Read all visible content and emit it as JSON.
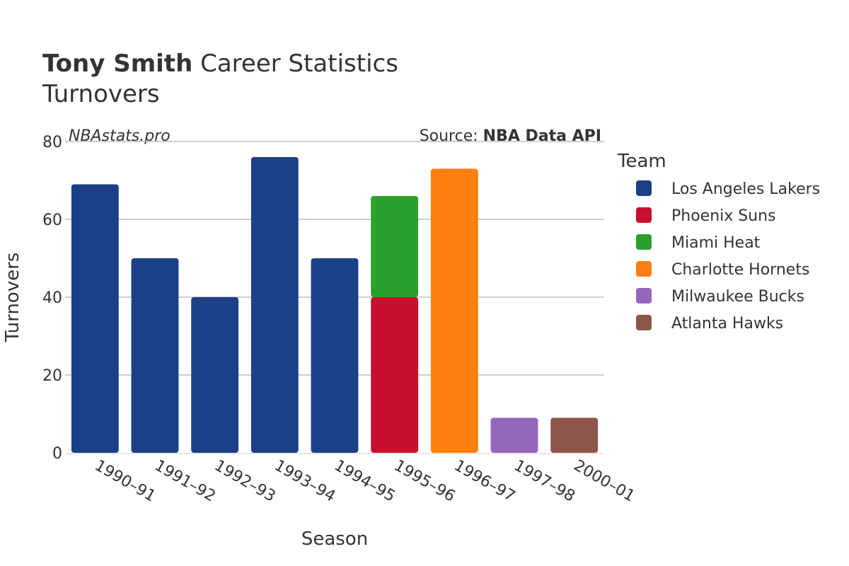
{
  "chart_data": {
    "type": "bar",
    "stacked": true,
    "title_bold": "Tony Smith",
    "title_rest": " Career Statistics",
    "subtitle": "Turnovers",
    "watermark": "NBAstats.pro",
    "source_prefix": "Source: ",
    "source_name": "NBA Data API",
    "xlabel": "Season",
    "ylabel": "Turnovers",
    "ylim": [
      0,
      80
    ],
    "yticks": [
      0,
      20,
      40,
      60,
      80
    ],
    "grid": true,
    "legend_title": "Team",
    "legend_position": "right",
    "categories": [
      "1990–91",
      "1991–92",
      "1992–93",
      "1993–94",
      "1994–95",
      "1995–96",
      "1996–97",
      "1997–98",
      "2000–01"
    ],
    "series": [
      {
        "name": "Los Angeles Lakers",
        "color": "#1b4087",
        "values": [
          69,
          50,
          40,
          76,
          50,
          0,
          0,
          0,
          0
        ]
      },
      {
        "name": "Phoenix Suns",
        "color": "#c8102e",
        "values": [
          0,
          0,
          0,
          0,
          0,
          40,
          0,
          0,
          0
        ]
      },
      {
        "name": "Miami Heat",
        "color": "#2ca02c",
        "values": [
          0,
          0,
          0,
          0,
          0,
          26,
          0,
          0,
          0
        ]
      },
      {
        "name": "Charlotte Hornets",
        "color": "#ff7f0e",
        "values": [
          0,
          0,
          0,
          0,
          0,
          0,
          73,
          0,
          0
        ]
      },
      {
        "name": "Milwaukee Bucks",
        "color": "#9467bd",
        "values": [
          0,
          0,
          0,
          0,
          0,
          0,
          0,
          9,
          0
        ]
      },
      {
        "name": "Atlanta Hawks",
        "color": "#8c564b",
        "values": [
          0,
          0,
          0,
          0,
          0,
          0,
          0,
          0,
          9
        ]
      }
    ]
  }
}
